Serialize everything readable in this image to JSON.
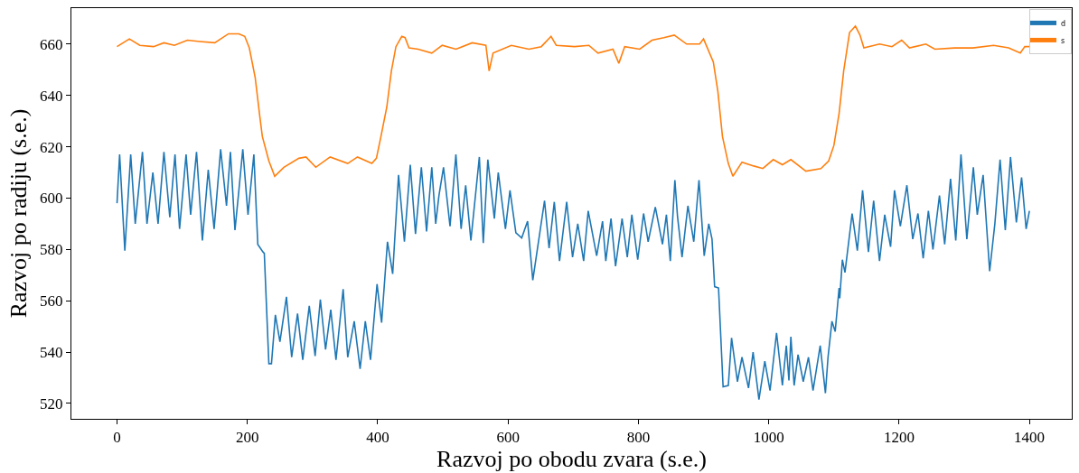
{
  "chart_data": {
    "type": "line",
    "xlabel": "Razvoj po obodu zvara (s.e.)",
    "ylabel": "Razvoj po radiju (s.e.)",
    "xlim": [
      -70,
      1465
    ],
    "ylim": [
      514,
      674
    ],
    "xticks": [
      0,
      200,
      400,
      600,
      800,
      1000,
      1200,
      1400
    ],
    "yticks": [
      520,
      540,
      560,
      580,
      600,
      620,
      640,
      660
    ],
    "grid": false,
    "legend": "top right",
    "marker": "none",
    "line_style": "solid",
    "series": [
      {
        "name": "d",
        "color": "#1f77b4",
        "x": [
          0,
          4,
          12,
          21,
          28,
          39,
          46,
          55,
          63,
          72,
          81,
          89,
          96,
          106,
          113,
          122,
          131,
          140,
          149,
          159,
          168,
          174,
          181,
          187,
          193,
          201,
          210,
          216,
          224,
          226,
          233,
          237,
          243,
          250,
          260,
          268,
          277,
          285,
          295,
          304,
          312,
          320,
          328,
          336,
          347,
          354,
          364,
          373,
          381,
          389,
          399,
          406,
          415,
          423,
          432,
          441,
          450,
          458,
          467,
          475,
          483,
          489,
          494,
          501,
          511,
          520,
          528,
          535,
          543,
          556,
          562,
          569,
          579,
          585,
          596,
          603,
          612,
          621,
          630,
          638,
          656,
          663,
          671,
          679,
          690,
          699,
          707,
          716,
          723,
          736,
          745,
          750,
          758,
          765,
          775,
          783,
          790,
          799,
          808,
          815,
          826,
          837,
          843,
          849,
          856,
          860,
          867,
          876,
          885,
          893,
          901,
          908,
          913,
          917,
          923,
          930,
          938,
          943,
          952,
          959,
          969,
          976,
          985,
          994,
          1002,
          1012,
          1021,
          1027,
          1031,
          1034,
          1039,
          1045,
          1053,
          1061,
          1068,
          1079,
          1087,
          1091,
          1097,
          1102,
          1108,
          1109,
          1113,
          1117,
          1128,
          1136,
          1144,
          1153,
          1161,
          1170,
          1178,
          1187,
          1193,
          1202,
          1212,
          1221,
          1229,
          1237,
          1245,
          1252,
          1262,
          1270,
          1279,
          1287,
          1295,
          1304,
          1314,
          1320,
          1329,
          1339,
          1347,
          1355,
          1363,
          1371,
          1380,
          1388,
          1395,
          1400
        ],
        "values": [
          598,
          617,
          579.5,
          617,
          590,
          618,
          590,
          610,
          590,
          618,
          592.5,
          617,
          588,
          617,
          593.5,
          618,
          583.5,
          611,
          588,
          619,
          597,
          618,
          587.5,
          603,
          619,
          593.5,
          617,
          582,
          579,
          578.5,
          535.5,
          535.5,
          554.5,
          544,
          561.5,
          538,
          555,
          537,
          558,
          538.5,
          560.5,
          541,
          556.5,
          537,
          564.5,
          538,
          552,
          533.5,
          552,
          537,
          566.5,
          551.5,
          583,
          570.5,
          609,
          583,
          613,
          586,
          612,
          587,
          612,
          590,
          601,
          612,
          589,
          617,
          588,
          605,
          583.5,
          616,
          582.5,
          615,
          592,
          610,
          588,
          603,
          586.5,
          584.5,
          591,
          568,
          599,
          580.5,
          598.5,
          575.5,
          598.5,
          577,
          590,
          575.5,
          595,
          577.5,
          591,
          575.5,
          592,
          573.5,
          592,
          577,
          593.5,
          576,
          594,
          583,
          596.5,
          582,
          593.5,
          575.5,
          607,
          593,
          577,
          597,
          583,
          607,
          577.5,
          590,
          584,
          565.5,
          565,
          526.5,
          527,
          545.5,
          528.5,
          538,
          526,
          540,
          521.5,
          536.5,
          525,
          547.5,
          527,
          542.5,
          529,
          546,
          527,
          539,
          528.5,
          538,
          525,
          542.5,
          524,
          538,
          552,
          548,
          565,
          561,
          576,
          571,
          594,
          579.5,
          603,
          579,
          599,
          575.5,
          593.5,
          581,
          603,
          589,
          605,
          584,
          594,
          576.5,
          595,
          580,
          601,
          582,
          607.5,
          583.5,
          617,
          584,
          612,
          593.5,
          609,
          571.5,
          590,
          615,
          587.5,
          616,
          590.5,
          608,
          588,
          595
        ]
      },
      {
        "name": "s",
        "color": "#ff7f0e",
        "x": [
          0,
          19,
          35,
          56,
          72,
          88,
          108,
          127,
          150,
          171,
          187,
          196,
          203,
          212,
          219,
          223,
          233,
          242,
          256,
          279,
          290,
          305,
          327,
          354,
          369,
          391,
          398,
          405,
          414,
          421,
          428,
          437,
          442,
          448,
          462,
          483,
          499,
          520,
          545,
          566,
          571,
          577,
          605,
          632,
          651,
          666,
          674,
          702,
          724,
          738,
          761,
          770,
          779,
          802,
          821,
          839,
          855,
          874,
          894,
          900,
          915,
          922,
          929,
          938,
          945,
          959,
          977,
          991,
          1007,
          1021,
          1034,
          1057,
          1080,
          1092,
          1100,
          1108,
          1115,
          1124,
          1133,
          1140,
          1146,
          1170,
          1189,
          1204,
          1216,
          1241,
          1255,
          1285,
          1313,
          1345,
          1368,
          1386,
          1393,
          1400
        ],
        "values": [
          659,
          662,
          659.5,
          659,
          660.5,
          659.5,
          661.5,
          661,
          660.5,
          664,
          664,
          663,
          658.5,
          647,
          632,
          624,
          614.5,
          608.5,
          612,
          615.5,
          616,
          612,
          616,
          613.5,
          616,
          613.5,
          615.5,
          624,
          635.5,
          649.5,
          659,
          663,
          662.5,
          658.5,
          658,
          656.5,
          659.5,
          658,
          660.5,
          659.5,
          649.5,
          656.5,
          659.5,
          658,
          659,
          663,
          659.5,
          659,
          659.5,
          656.5,
          658,
          652.5,
          659,
          658,
          661.5,
          662.5,
          663.5,
          660,
          660,
          662,
          653,
          641.5,
          624,
          613.5,
          608.5,
          614,
          612.5,
          611.5,
          615,
          613,
          615,
          610.5,
          611.5,
          614.5,
          620.5,
          633,
          649.5,
          664.5,
          667,
          663.5,
          658.5,
          660,
          659,
          661.5,
          658.5,
          660,
          658,
          658.5,
          658.5,
          659.5,
          658.5,
          656.5,
          659,
          659
        ]
      }
    ]
  }
}
